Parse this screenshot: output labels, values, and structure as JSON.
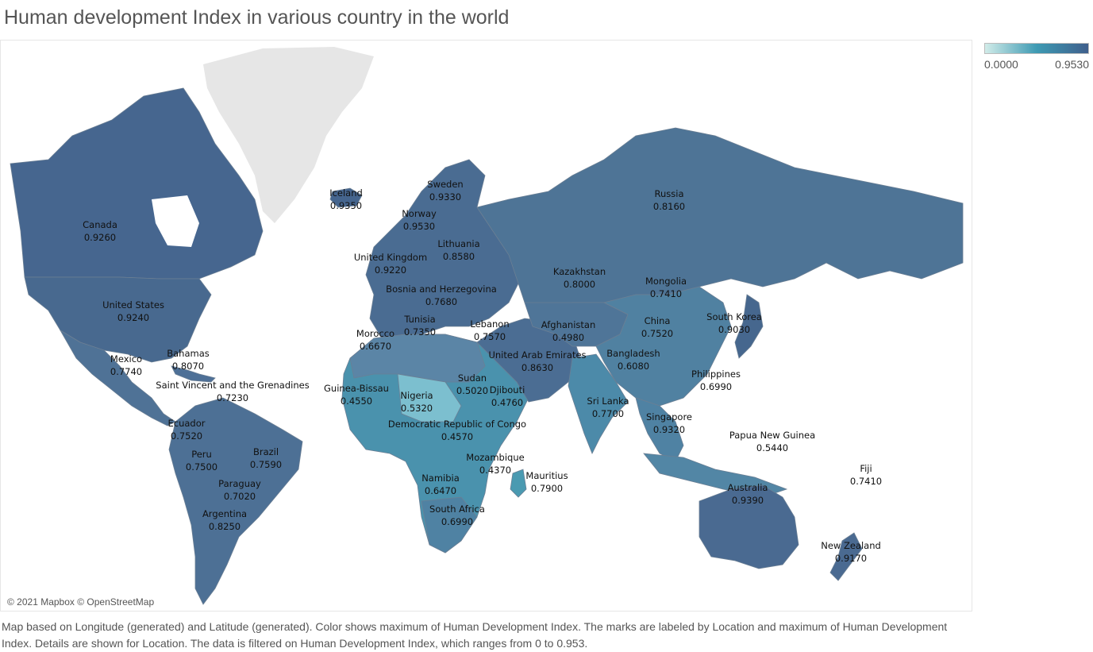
{
  "title": "Human development Index in various country in the world",
  "legend": {
    "min_label": "0.0000",
    "max_label": "0.9530",
    "color_low": "#d1ece9",
    "color_mid": "#3e9ab3",
    "color_high": "#3f5f8c"
  },
  "attribution": "© 2021 Mapbox © OpenStreetMap",
  "caption": "Map based on Longitude (generated) and Latitude (generated).  Color shows maximum of Human Development Index.  The marks are labeled by Location and maximum of Human Development Index.  Details are shown for Location. The data is filtered on Human Development Index, which ranges from 0 to 0.953.",
  "countries": [
    {
      "name": "Canada",
      "value": "0.9260"
    },
    {
      "name": "United States",
      "value": "0.9240"
    },
    {
      "name": "Mexico",
      "value": "0.7740"
    },
    {
      "name": "Bahamas",
      "value": "0.8070"
    },
    {
      "name": "Saint Vincent and the Grenadines",
      "value": "0.7230"
    },
    {
      "name": "Ecuador",
      "value": "0.7520"
    },
    {
      "name": "Peru",
      "value": "0.7500"
    },
    {
      "name": "Brazil",
      "value": "0.7590"
    },
    {
      "name": "Paraguay",
      "value": "0.7020"
    },
    {
      "name": "Argentina",
      "value": "0.8250"
    },
    {
      "name": "Iceland",
      "value": "0.9350"
    },
    {
      "name": "Sweden",
      "value": "0.9330"
    },
    {
      "name": "Norway",
      "value": "0.9530"
    },
    {
      "name": "Lithuania",
      "value": "0.8580"
    },
    {
      "name": "United Kingdom",
      "value": "0.9220"
    },
    {
      "name": "Bosnia and Herzegovina",
      "value": "0.7680"
    },
    {
      "name": "Tunisia",
      "value": "0.7350"
    },
    {
      "name": "Morocco",
      "value": "0.6670"
    },
    {
      "name": "Lebanon",
      "value": "0.7570"
    },
    {
      "name": "Afghanistan",
      "value": "0.4980"
    },
    {
      "name": "United Arab Emirates",
      "value": "0.8630"
    },
    {
      "name": "Guinea-Bissau",
      "value": "0.4550"
    },
    {
      "name": "Nigeria",
      "value": "0.5320"
    },
    {
      "name": "Sudan",
      "value": "0.5020"
    },
    {
      "name": "Djibouti",
      "value": "0.4760"
    },
    {
      "name": "Democratic Republic of Congo",
      "value": "0.4570"
    },
    {
      "name": "Mozambique",
      "value": "0.4370"
    },
    {
      "name": "Namibia",
      "value": "0.6470"
    },
    {
      "name": "South Africa",
      "value": "0.6990"
    },
    {
      "name": "Mauritius",
      "value": "0.7900"
    },
    {
      "name": "Russia",
      "value": "0.8160"
    },
    {
      "name": "Kazakhstan",
      "value": "0.8000"
    },
    {
      "name": "Mongolia",
      "value": "0.7410"
    },
    {
      "name": "China",
      "value": "0.7520"
    },
    {
      "name": "South Korea",
      "value": "0.9030"
    },
    {
      "name": "Bangladesh",
      "value": "0.6080"
    },
    {
      "name": "Sri Lanka",
      "value": "0.7700"
    },
    {
      "name": "Philippines",
      "value": "0.6990"
    },
    {
      "name": "Singapore",
      "value": "0.9320"
    },
    {
      "name": "Papua New Guinea",
      "value": "0.5440"
    },
    {
      "name": "Fiji",
      "value": "0.7410"
    },
    {
      "name": "Australia",
      "value": "0.9390"
    },
    {
      "name": "New Zealand",
      "value": "0.9170"
    }
  ]
}
